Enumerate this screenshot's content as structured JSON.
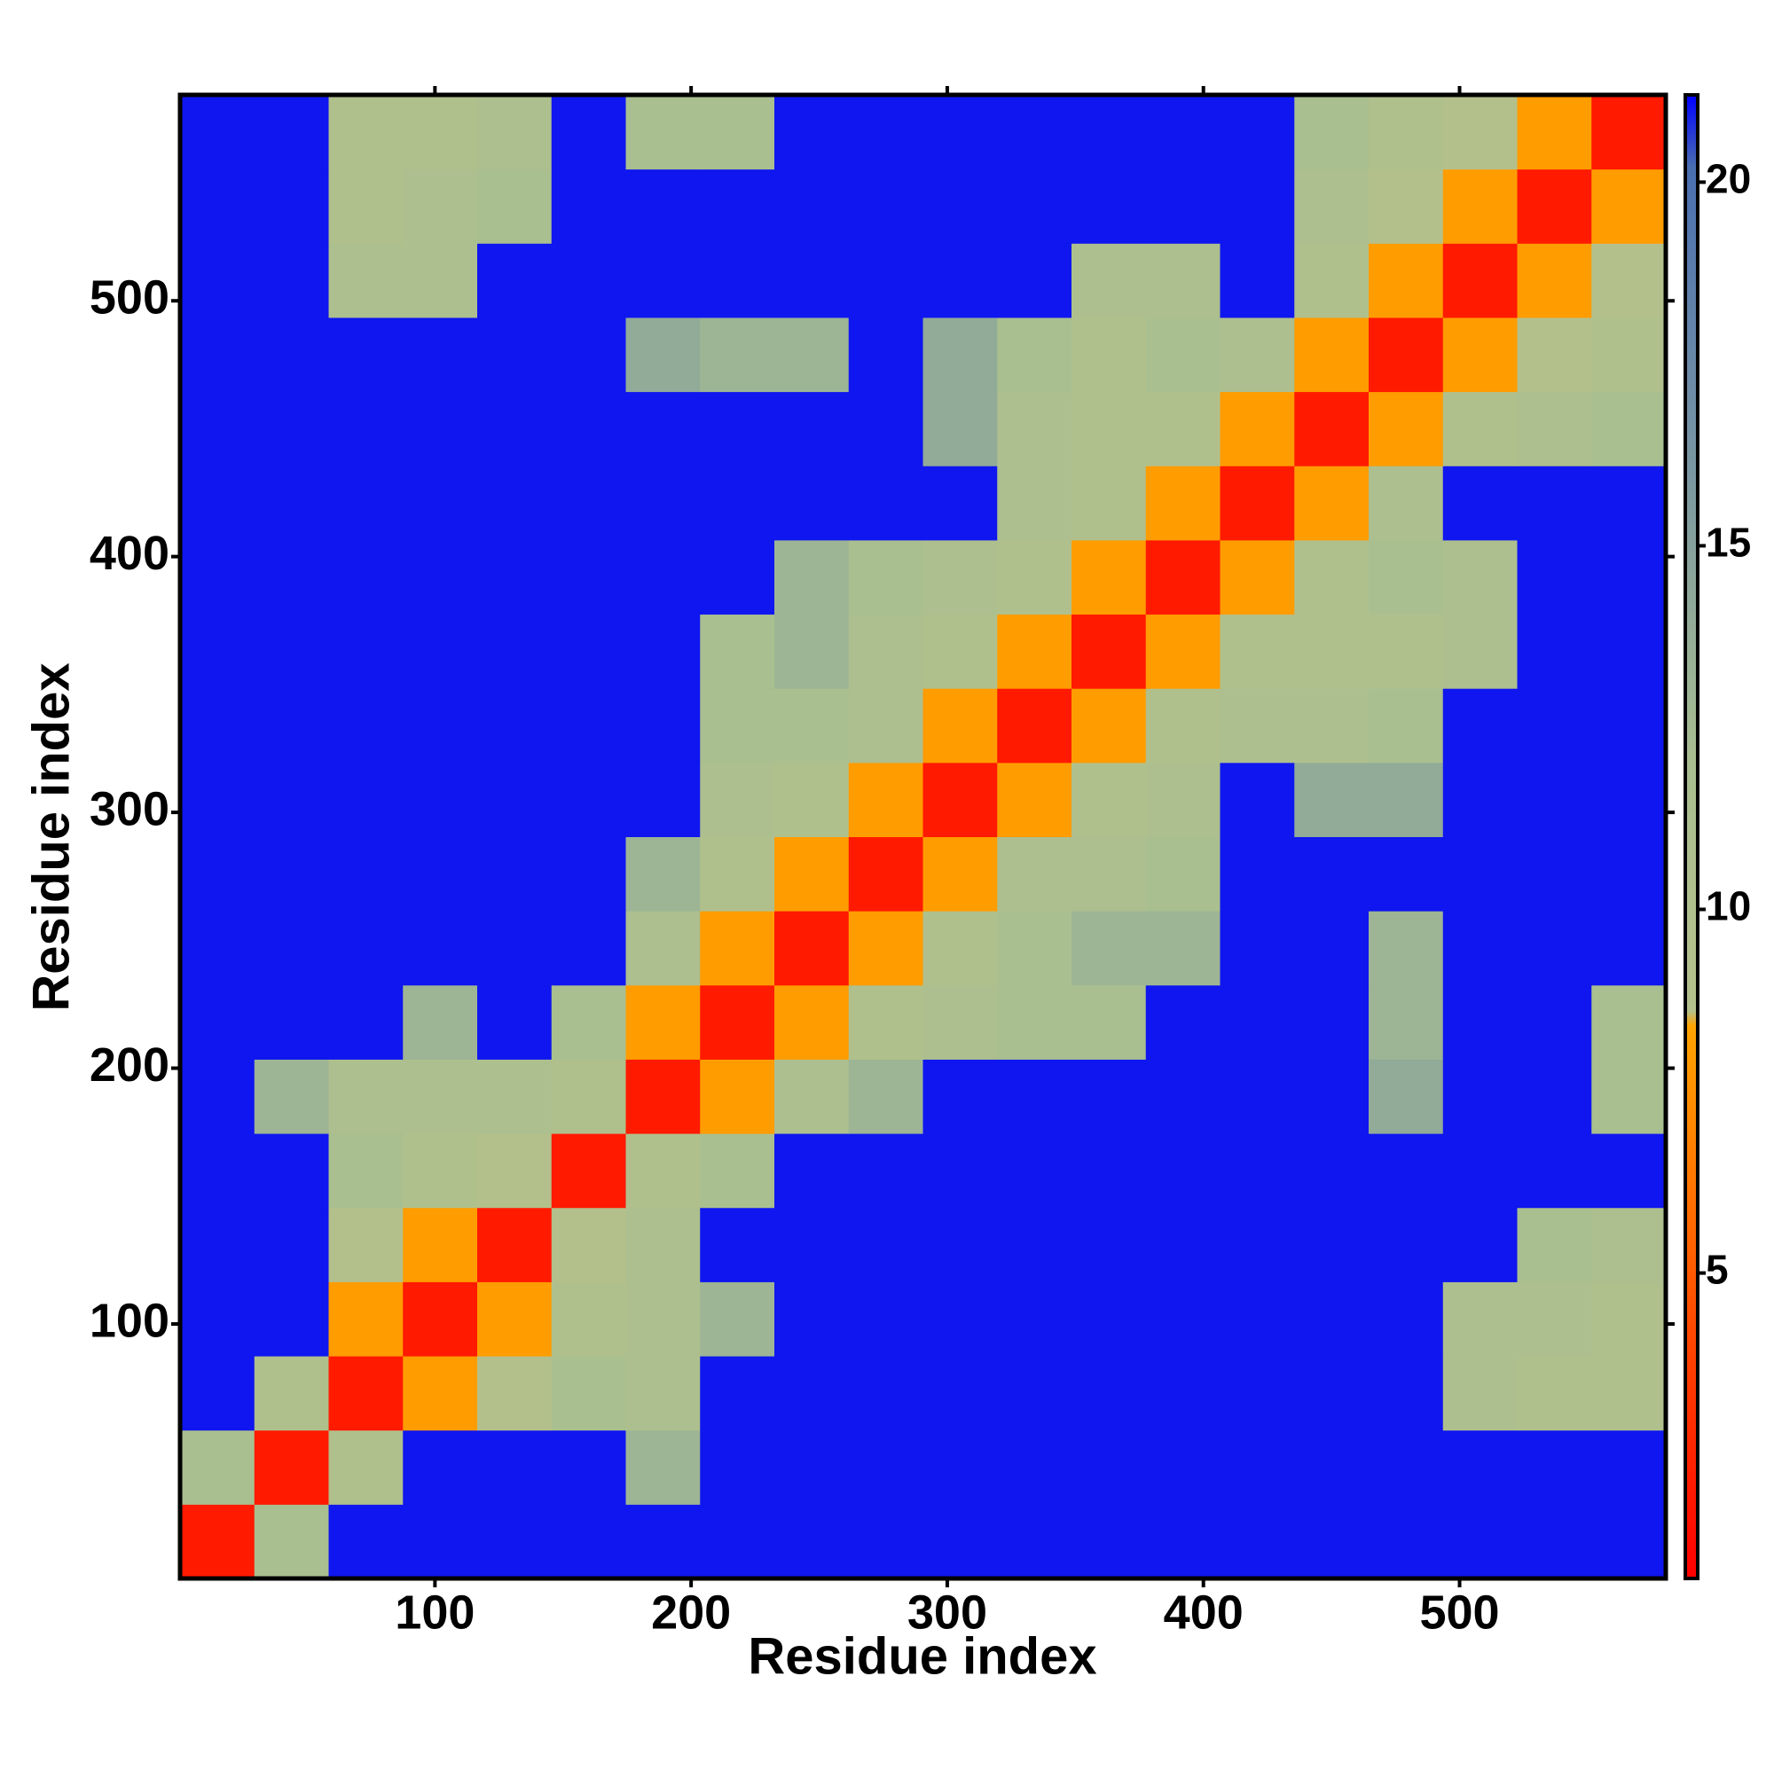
{
  "chart_data": {
    "type": "heatmap",
    "x_label": "Residue index",
    "y_label": "Residue index",
    "bins": [
      0.5,
      29.5,
      58.5,
      87.5,
      116.5,
      145.5,
      174.5,
      203.5,
      232.5,
      261.5,
      290.5,
      319.5,
      348.5,
      377.5,
      406.5,
      435.5,
      464.5,
      493.5,
      522.5,
      551.5,
      580.5
    ],
    "z": [
      [
        2,
        12,
        21,
        21,
        21,
        21,
        21,
        21,
        21,
        21,
        21,
        21,
        21,
        21,
        21,
        21,
        21,
        21,
        21,
        21
      ],
      [
        12,
        2,
        10,
        21,
        21,
        21,
        13,
        21,
        21,
        21,
        21,
        21,
        21,
        21,
        21,
        21,
        21,
        21,
        21,
        21
      ],
      [
        21,
        10,
        2,
        8,
        9,
        12,
        11,
        21,
        21,
        21,
        21,
        21,
        21,
        21,
        21,
        21,
        21,
        11,
        10,
        10
      ],
      [
        21,
        21,
        8,
        2,
        8,
        10,
        11,
        13,
        21,
        21,
        21,
        21,
        21,
        21,
        21,
        21,
        21,
        11,
        11,
        10
      ],
      [
        21,
        21,
        9,
        8,
        2,
        9,
        11,
        21,
        21,
        21,
        21,
        21,
        21,
        21,
        21,
        21,
        21,
        21,
        12,
        11
      ],
      [
        21,
        21,
        12,
        10,
        9,
        2,
        10,
        12,
        21,
        21,
        21,
        21,
        21,
        21,
        21,
        21,
        21,
        21,
        21,
        21
      ],
      [
        21,
        13,
        11,
        11,
        11,
        10,
        2,
        8,
        11,
        13,
        21,
        21,
        21,
        21,
        21,
        21,
        14,
        21,
        21,
        12
      ],
      [
        21,
        21,
        21,
        13,
        21,
        12,
        8,
        2,
        8,
        10,
        11,
        12,
        12,
        21,
        21,
        21,
        13,
        21,
        21,
        12
      ],
      [
        21,
        21,
        21,
        21,
        21,
        21,
        11,
        8,
        2,
        8,
        10,
        12,
        13,
        13,
        21,
        21,
        13,
        21,
        21,
        21
      ],
      [
        21,
        21,
        21,
        21,
        21,
        21,
        13,
        10,
        8,
        2,
        8,
        11,
        11,
        12,
        21,
        21,
        21,
        21,
        21,
        21
      ],
      [
        21,
        21,
        21,
        21,
        21,
        21,
        21,
        11,
        10,
        8,
        2,
        8,
        10,
        11,
        21,
        14,
        14,
        21,
        21,
        21
      ],
      [
        21,
        21,
        21,
        21,
        21,
        21,
        21,
        12,
        12,
        11,
        8,
        2,
        8,
        10,
        11,
        11,
        12,
        21,
        21,
        21
      ],
      [
        21,
        21,
        21,
        21,
        21,
        21,
        21,
        12,
        13,
        11,
        10,
        8,
        2,
        8,
        10,
        10,
        10,
        11,
        21,
        21
      ],
      [
        21,
        21,
        21,
        21,
        21,
        21,
        21,
        21,
        13,
        12,
        11,
        10,
        8,
        2,
        8,
        10,
        12,
        11,
        21,
        21
      ],
      [
        21,
        21,
        21,
        21,
        21,
        21,
        21,
        21,
        21,
        21,
        21,
        11,
        10,
        8,
        2,
        8,
        11,
        21,
        21,
        21
      ],
      [
        21,
        21,
        21,
        21,
        21,
        21,
        21,
        21,
        21,
        21,
        14,
        11,
        10,
        10,
        8,
        2,
        8,
        10,
        11,
        12
      ],
      [
        21,
        21,
        21,
        21,
        21,
        21,
        14,
        13,
        13,
        21,
        14,
        12,
        10,
        12,
        11,
        8,
        2,
        8,
        9,
        10
      ],
      [
        21,
        21,
        11,
        11,
        21,
        21,
        21,
        21,
        21,
        21,
        21,
        21,
        11,
        11,
        21,
        10,
        8,
        2,
        8,
        9
      ],
      [
        21,
        21,
        10,
        11,
        12,
        21,
        21,
        21,
        21,
        21,
        21,
        21,
        21,
        21,
        21,
        11,
        9,
        8,
        2,
        8
      ],
      [
        21,
        21,
        10,
        10,
        11,
        21,
        12,
        12,
        21,
        21,
        21,
        21,
        21,
        21,
        21,
        12,
        10,
        9,
        8,
        2
      ]
    ],
    "xlim": [
      0.5,
      580.5
    ],
    "ylim": [
      0.5,
      580.5
    ],
    "xticks": [
      100,
      200,
      300,
      400,
      500
    ],
    "yticks": [
      100,
      200,
      300,
      400,
      500
    ],
    "zlim": [
      0.8,
      21.2
    ],
    "zticks": [
      5,
      10,
      15,
      20
    ],
    "colorscale": [
      [
        0.8,
        "#ff0000"
      ],
      [
        5,
        "#ff5a00"
      ],
      [
        8.4,
        "#ffa500"
      ],
      [
        8.6,
        "#b5c08a"
      ],
      [
        12,
        "#a9bf8f"
      ],
      [
        17,
        "#6f8ea6"
      ],
      [
        20.2,
        "#4a6fb0"
      ],
      [
        21.2,
        "#0000ff"
      ]
    ]
  }
}
